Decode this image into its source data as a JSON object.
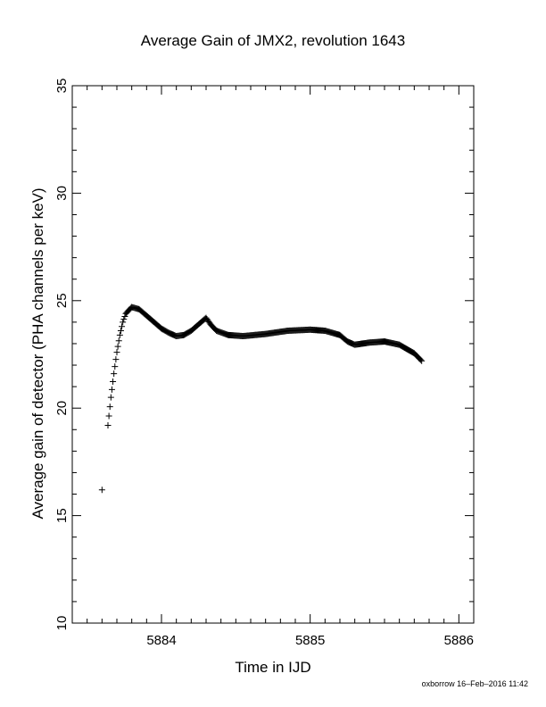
{
  "chart_data": {
    "type": "scatter",
    "title": "Average Gain of JMX2, revolution 1643",
    "xlabel": "Time in IJD",
    "ylabel": "Average gain of detector (PHA channels per keV)",
    "xlim": [
      5883.4,
      5886.1
    ],
    "ylim": [
      10,
      35
    ],
    "xticks": [
      5884,
      5885,
      5886
    ],
    "yticks": [
      10,
      15,
      20,
      25,
      30,
      35
    ],
    "marker": "plus",
    "grid": false,
    "series": [
      {
        "x": [
          5883.6,
          5883.64,
          5883.66,
          5883.68,
          5883.7,
          5883.72,
          5883.74,
          5883.76,
          5883.8,
          5883.85,
          5883.9,
          5884.0,
          5884.05,
          5884.1,
          5884.15,
          5884.2,
          5884.25,
          5884.3,
          5884.33,
          5884.37,
          5884.45,
          5884.55,
          5884.7,
          5884.85,
          5885.0,
          5885.1,
          5885.2,
          5885.25,
          5885.3,
          5885.4,
          5885.5,
          5885.6,
          5885.7,
          5885.75
        ],
        "y": [
          16.2,
          19.2,
          20.5,
          21.6,
          22.6,
          23.4,
          24.0,
          24.4,
          24.7,
          24.6,
          24.3,
          23.7,
          23.5,
          23.35,
          23.4,
          23.6,
          23.9,
          24.2,
          23.9,
          23.6,
          23.4,
          23.35,
          23.45,
          23.6,
          23.65,
          23.6,
          23.4,
          23.1,
          22.95,
          23.05,
          23.1,
          22.95,
          22.55,
          22.2
        ]
      }
    ]
  },
  "footer_text": "oxborrow 16–Feb–2016 11:42"
}
